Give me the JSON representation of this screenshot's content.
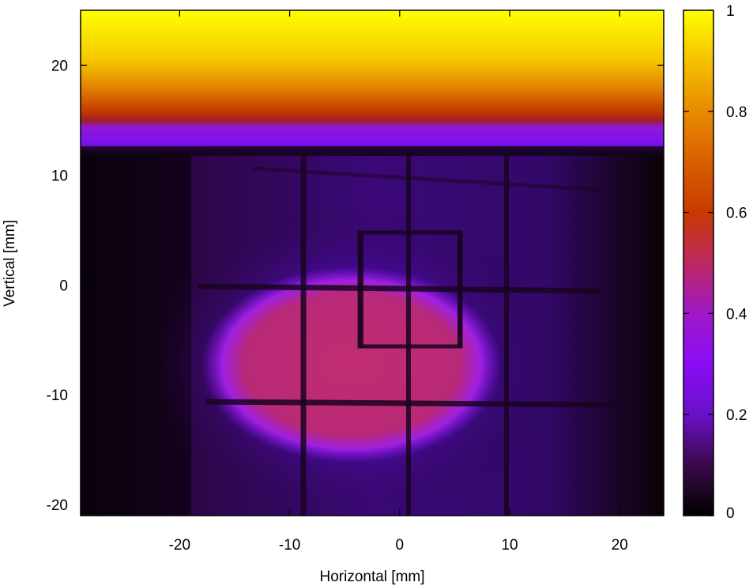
{
  "chart_data": {
    "type": "heatmap",
    "title": "",
    "xlabel": "Horizontal [mm]",
    "ylabel": "Vertical [mm]",
    "xlim": [
      -29,
      24
    ],
    "ylim": [
      -21,
      25
    ],
    "x_ticks": [
      -20,
      -10,
      0,
      10,
      20
    ],
    "y_ticks": [
      -20,
      -10,
      0,
      10,
      20
    ],
    "x_tick_labels": [
      "-20",
      "-10",
      "0",
      "10",
      "20"
    ],
    "y_tick_labels": [
      "-20",
      "-10",
      "0",
      "10",
      "20"
    ],
    "colorbar": {
      "range": [
        0,
        1
      ],
      "ticks": [
        0,
        0.2,
        0.4,
        0.6,
        0.8,
        1
      ],
      "tick_labels": [
        "0",
        "0.2",
        "0.4",
        "0.6",
        "0.8",
        "1"
      ],
      "colormap": "gnuplot-pm3d (black-purple-red-orange-yellow)"
    },
    "regions": [
      {
        "feature": "top saturated band",
        "x_range": [
          -29,
          24
        ],
        "y_range": [
          16,
          25
        ],
        "value": 0.97
      },
      {
        "feature": "transition band",
        "x_range": [
          -29,
          24
        ],
        "y_range": [
          12.5,
          16
        ],
        "value": 0.3
      },
      {
        "feature": "central beam spot",
        "center": [
          -4,
          -6.5
        ],
        "half_width_x": 13,
        "half_height_y": 8,
        "value": 0.45
      },
      {
        "feature": "grid wires vertical",
        "x_positions": [
          -8.5,
          -3.5,
          1.2,
          5.8,
          9.8
        ]
      },
      {
        "feature": "grid wires horizontal",
        "y_positions": [
          0,
          -10.5
        ]
      },
      {
        "feature": "inner rectangle",
        "x_range": [
          -3.5,
          5.8
        ],
        "y_range": [
          -5.5,
          4.8
        ]
      }
    ]
  }
}
